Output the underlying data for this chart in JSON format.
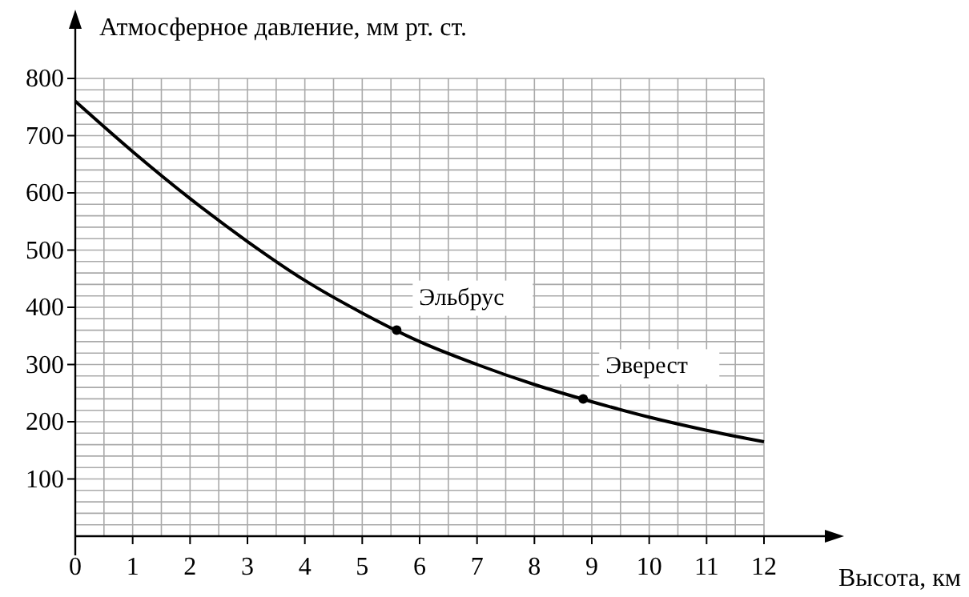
{
  "chart_data": {
    "type": "line",
    "xlabel": "Высота, км",
    "ylabel": "Атмосферное давление, мм  рт. ст.",
    "x": [
      0,
      1,
      2,
      3,
      4,
      5,
      6,
      7,
      8,
      9,
      10,
      11,
      12
    ],
    "series": [
      {
        "color": "#000000",
        "values": [
          760,
          672,
          590,
          515,
          447,
          390,
          340,
          300,
          265,
          235,
          208,
          185,
          165
        ]
      },
      {
        "type": "scatter",
        "color": "#000000",
        "marker": "circle",
        "x": [
          5.6,
          8.85
        ],
        "values": [
          360,
          240
        ]
      }
    ],
    "xlim": [
      0,
      12
    ],
    "ylim": [
      0,
      800
    ],
    "xticks": [
      0,
      1,
      2,
      3,
      4,
      5,
      6,
      7,
      8,
      9,
      10,
      11,
      12
    ],
    "yticks": [
      100,
      200,
      300,
      400,
      500,
      600,
      700,
      800
    ],
    "grid": true,
    "line_style": "solid",
    "annotations": [
      {
        "text": "Эльбрус",
        "x": 5.6,
        "y": 360
      },
      {
        "text": "Эверест",
        "x": 8.85,
        "y": 240
      }
    ]
  }
}
